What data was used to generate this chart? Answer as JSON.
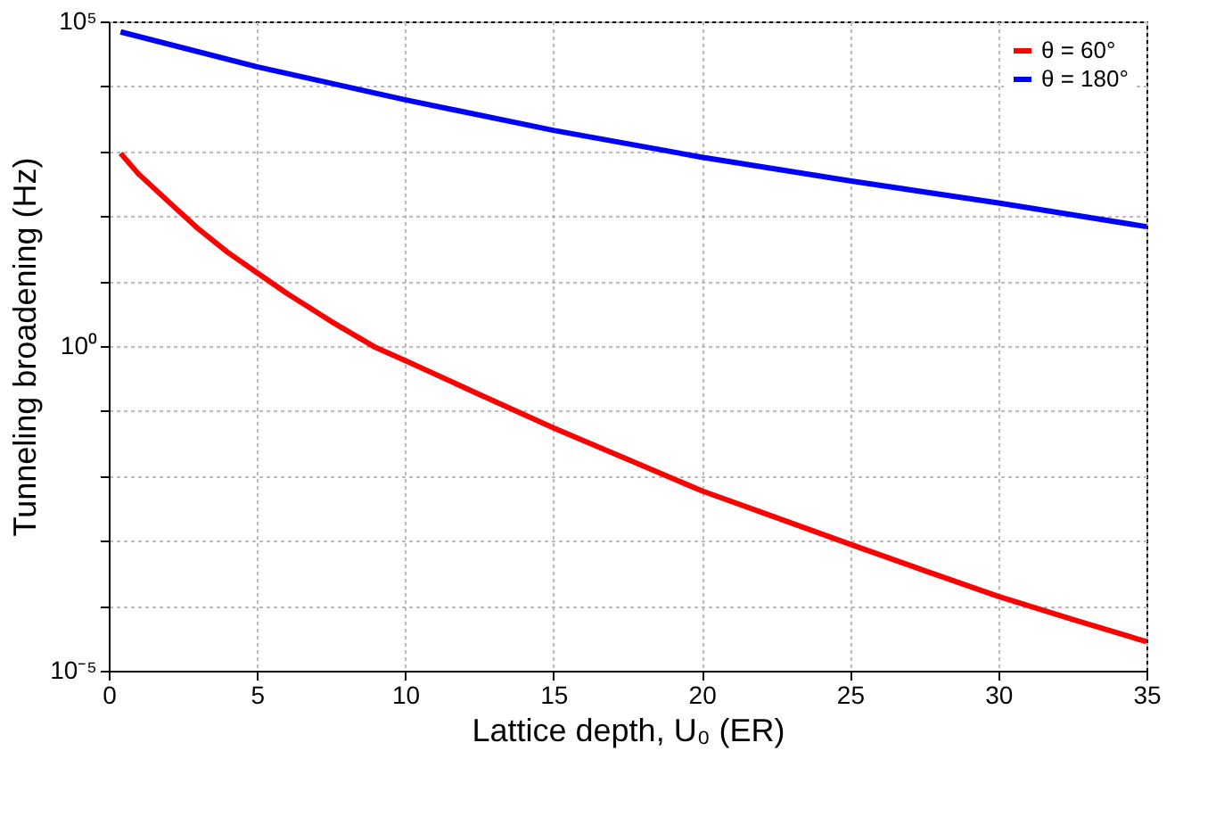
{
  "chart_data": {
    "type": "line",
    "xlabel": "Lattice depth, U₀ (ER)",
    "ylabel": "Tunneling broadening (Hz)",
    "log": "y",
    "grid": true,
    "legend": "top right",
    "line_style": "solid",
    "marker": "none",
    "xlim": [
      0,
      35
    ],
    "xticks": [
      0,
      5,
      10,
      15,
      20,
      25,
      30,
      35
    ],
    "ylim": [
      1e-05,
      100000
    ],
    "yticks": [
      {
        "value": 1e-05,
        "label": "10⁻⁵"
      },
      {
        "value": 0.0001,
        "label": null
      },
      {
        "value": 0.001,
        "label": null
      },
      {
        "value": 0.01,
        "label": null
      },
      {
        "value": 0.1,
        "label": null
      },
      {
        "value": 1,
        "label": "10⁰"
      },
      {
        "value": 10,
        "label": null
      },
      {
        "value": 100,
        "label": null
      },
      {
        "value": 1000,
        "label": null
      },
      {
        "value": 10000,
        "label": null
      },
      {
        "value": 100000,
        "label": "10⁵"
      }
    ],
    "series": [
      {
        "name": "θ = 60°",
        "color": "#ff0000",
        "x": [
          0.4,
          1,
          2,
          3,
          4,
          5,
          6,
          7.5,
          9,
          10,
          12.5,
          15,
          17.5,
          20,
          22.5,
          25,
          27.5,
          30,
          32.5,
          35
        ],
        "values": [
          930,
          450,
          170,
          65,
          28,
          13.5,
          6.5,
          2.4,
          0.95,
          0.6,
          0.18,
          0.055,
          0.018,
          0.0059,
          0.0023,
          0.00089,
          0.00035,
          0.00014,
          6.2e-05,
          2.8e-05
        ]
      },
      {
        "name": "θ = 180°",
        "color": "#0000ff",
        "x": [
          0.4,
          5,
          10,
          15,
          20,
          25,
          30,
          35
        ],
        "values": [
          69000,
          20000,
          6200,
          2100,
          810,
          350,
          160,
          69
        ]
      }
    ]
  }
}
